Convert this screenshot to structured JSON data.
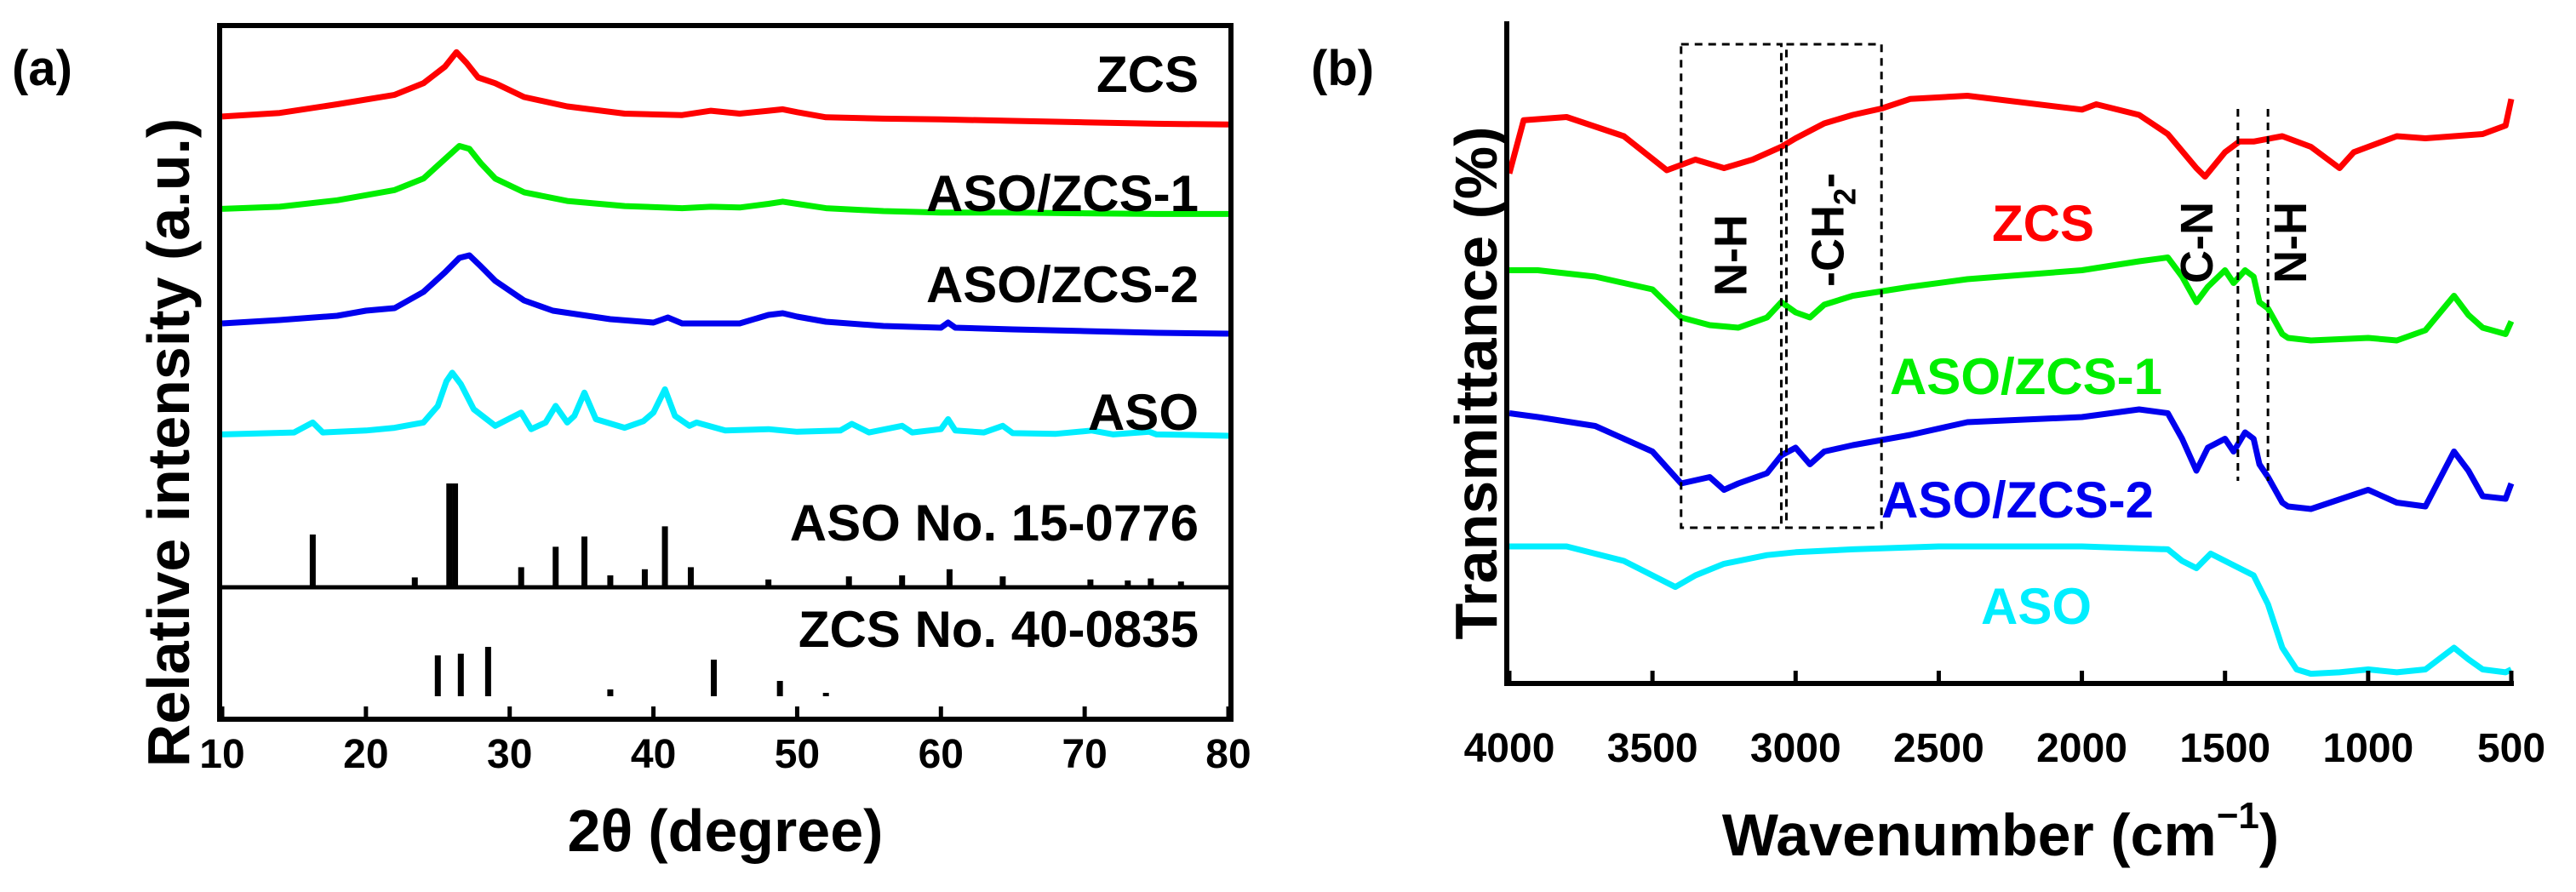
{
  "chart_data": [
    {
      "type": "line",
      "panel_label": "(a)",
      "title": "",
      "xlabel_main": "2θ",
      "xlabel_unit": "(degree)",
      "ylabel": "Relative intensity (a.u.)",
      "xlim": [
        10,
        80
      ],
      "xticks": [
        "10",
        "20",
        "30",
        "40",
        "50",
        "60",
        "70",
        "80"
      ],
      "colors": {
        "ZCS": "#ff0000",
        "ASO/ZCS-1": "#00ee00",
        "ASO/ZCS-2": "#0000ee",
        "ASO": "#00eeff",
        "reference": "#000000"
      },
      "series": [
        {
          "name": "ZCS",
          "x": [
            10,
            14,
            18,
            22,
            24,
            25.5,
            26.3,
            27,
            27.8,
            29,
            31,
            34,
            38,
            42,
            44,
            46,
            48,
            49,
            50,
            52,
            56,
            60,
            65,
            70,
            75,
            80
          ],
          "values": [
            0.06,
            0.11,
            0.23,
            0.36,
            0.52,
            0.75,
            0.95,
            0.8,
            0.6,
            0.52,
            0.33,
            0.2,
            0.1,
            0.08,
            0.14,
            0.1,
            0.14,
            0.16,
            0.12,
            0.05,
            0.03,
            0.02,
            0.0,
            -0.02,
            -0.04,
            -0.05
          ]
        },
        {
          "name": "ASO/ZCS-1",
          "x": [
            10,
            14,
            18,
            22,
            24,
            25.5,
            26.5,
            27.2,
            28,
            29,
            31,
            34,
            38,
            42,
            44,
            46,
            48,
            49,
            50,
            52,
            56,
            60,
            65,
            70,
            75,
            80
          ],
          "values": [
            0.03,
            0.06,
            0.15,
            0.29,
            0.45,
            0.72,
            0.9,
            0.86,
            0.66,
            0.45,
            0.26,
            0.14,
            0.07,
            0.04,
            0.06,
            0.05,
            0.1,
            0.13,
            0.1,
            0.04,
            0.0,
            -0.02,
            -0.02,
            -0.03,
            -0.04,
            -0.04
          ]
        },
        {
          "name": "ASO/ZCS-2",
          "x": [
            10,
            14,
            18,
            20,
            22,
            24,
            25.5,
            26.5,
            27.2,
            28,
            29,
            31,
            33,
            35,
            37,
            40,
            41,
            42,
            46,
            48,
            49,
            50,
            52,
            56,
            60,
            60.5,
            61,
            65,
            70,
            75,
            80
          ],
          "values": [
            0.05,
            0.09,
            0.14,
            0.2,
            0.23,
            0.42,
            0.65,
            0.82,
            0.85,
            0.72,
            0.55,
            0.32,
            0.2,
            0.15,
            0.1,
            0.06,
            0.12,
            0.05,
            0.05,
            0.15,
            0.17,
            0.13,
            0.07,
            0.02,
            0.0,
            0.06,
            0.0,
            -0.02,
            -0.04,
            -0.06,
            -0.07
          ]
        },
        {
          "name": "ASO",
          "x": [
            10,
            15,
            16.3,
            17,
            20,
            22,
            24,
            25,
            25.6,
            26,
            26.6,
            27.5,
            29,
            30.8,
            31.5,
            32.5,
            33.2,
            34,
            34.5,
            35.2,
            36,
            38,
            39.3,
            40,
            40.8,
            41.5,
            42.5,
            43,
            45,
            48,
            50,
            53,
            53.8,
            55,
            57.3,
            58,
            60,
            60.5,
            61,
            63,
            64.3,
            65,
            68,
            70.5,
            72,
            74.5,
            75,
            78,
            80
          ],
          "values": [
            0.02,
            0.05,
            0.2,
            0.05,
            0.08,
            0.12,
            0.2,
            0.45,
            0.82,
            0.95,
            0.78,
            0.4,
            0.15,
            0.35,
            0.1,
            0.2,
            0.45,
            0.2,
            0.3,
            0.65,
            0.25,
            0.12,
            0.22,
            0.35,
            0.7,
            0.3,
            0.15,
            0.2,
            0.08,
            0.1,
            0.06,
            0.08,
            0.18,
            0.05,
            0.15,
            0.05,
            0.1,
            0.25,
            0.08,
            0.05,
            0.15,
            0.04,
            0.03,
            0.08,
            0.02,
            0.06,
            0.02,
            0.01,
            0.0
          ]
        }
      ],
      "reference_patterns": [
        {
          "name": "ASO No. 15-0776",
          "positions": [
            16.3,
            23.4,
            25.8,
            26.2,
            30.8,
            33.2,
            35.2,
            37.0,
            39.4,
            40.8,
            42.6,
            48.0,
            53.6,
            57.3,
            60.6,
            64.3,
            70.4,
            73.0,
            74.6,
            76.7
          ],
          "intensities": [
            0.5,
            0.08,
            1.0,
            1.0,
            0.18,
            0.38,
            0.48,
            0.1,
            0.16,
            0.58,
            0.18,
            0.06,
            0.09,
            0.1,
            0.16,
            0.09,
            0.06,
            0.05,
            0.07,
            0.04
          ]
        },
        {
          "name": "ZCS No. 40-0835",
          "positions": [
            25.0,
            26.6,
            28.5,
            37.0,
            44.2,
            48.8,
            52.0
          ],
          "intensities": [
            0.48,
            0.5,
            0.58,
            0.08,
            0.43,
            0.18,
            0.04
          ]
        }
      ],
      "curve_labels": [
        "ZCS",
        "ASO/ZCS-1",
        "ASO/ZCS-2",
        "ASO"
      ]
    },
    {
      "type": "line",
      "panel_label": "(b)",
      "title": "",
      "xlabel_main": "Wavenumber (cm",
      "xlabel_sup": "−1",
      "xlabel_close": ")",
      "ylabel": "Transmittance (%)",
      "xlim": [
        4000,
        500
      ],
      "xticks": [
        "4000",
        "3500",
        "3000",
        "2500",
        "2000",
        "1500",
        "1000",
        "500"
      ],
      "colors": {
        "ZCS": "#ff0000",
        "ASO/ZCS-1": "#00ee00",
        "ASO/ZCS-2": "#0000ee",
        "ASO": "#00eeff"
      },
      "series": [
        {
          "name": "ZCS",
          "x": [
            4000,
            3950,
            3800,
            3600,
            3450,
            3350,
            3250,
            3150,
            3050,
            3000,
            2900,
            2800,
            2700,
            2600,
            2400,
            2000,
            1950,
            1800,
            1700,
            1650,
            1600,
            1570,
            1500,
            1450,
            1400,
            1300,
            1200,
            1100,
            1050,
            1000,
            900,
            800,
            700,
            600,
            520,
            500
          ],
          "values": [
            0.25,
            0.75,
            0.78,
            0.6,
            0.28,
            0.38,
            0.3,
            0.38,
            0.5,
            0.58,
            0.72,
            0.8,
            0.86,
            0.95,
            0.98,
            0.85,
            0.9,
            0.8,
            0.62,
            0.46,
            0.3,
            0.22,
            0.45,
            0.55,
            0.55,
            0.6,
            0.5,
            0.3,
            0.45,
            0.5,
            0.6,
            0.58,
            0.6,
            0.62,
            0.7,
            0.95
          ]
        },
        {
          "name": "ASO/ZCS-1",
          "x": [
            4000,
            3900,
            3700,
            3500,
            3400,
            3300,
            3200,
            3100,
            3050,
            3000,
            2950,
            2900,
            2800,
            2600,
            2400,
            2000,
            1800,
            1700,
            1650,
            1600,
            1560,
            1500,
            1470,
            1430,
            1400,
            1380,
            1350,
            1300,
            1280,
            1200,
            1000,
            900,
            800,
            700,
            650,
            600,
            520,
            500
          ],
          "values": [
            0.55,
            0.55,
            0.5,
            0.4,
            0.18,
            0.12,
            0.1,
            0.18,
            0.3,
            0.22,
            0.18,
            0.28,
            0.35,
            0.42,
            0.48,
            0.55,
            0.62,
            0.65,
            0.5,
            0.3,
            0.42,
            0.55,
            0.45,
            0.55,
            0.5,
            0.3,
            0.25,
            0.05,
            0.02,
            0.0,
            0.02,
            0.0,
            0.08,
            0.35,
            0.2,
            0.1,
            0.05,
            0.15
          ]
        },
        {
          "name": "ASO/ZCS-2",
          "x": [
            4000,
            3900,
            3700,
            3500,
            3400,
            3300,
            3250,
            3200,
            3100,
            3050,
            3000,
            2950,
            2900,
            2800,
            2600,
            2400,
            2000,
            1800,
            1700,
            1650,
            1600,
            1560,
            1500,
            1470,
            1430,
            1400,
            1380,
            1350,
            1300,
            1280,
            1200,
            1000,
            900,
            800,
            700,
            650,
            600,
            520,
            500
          ],
          "values": [
            0.75,
            0.72,
            0.65,
            0.45,
            0.2,
            0.25,
            0.15,
            0.2,
            0.28,
            0.42,
            0.48,
            0.35,
            0.45,
            0.5,
            0.58,
            0.68,
            0.72,
            0.78,
            0.75,
            0.55,
            0.3,
            0.48,
            0.55,
            0.45,
            0.6,
            0.55,
            0.35,
            0.25,
            0.05,
            0.02,
            0.0,
            0.15,
            0.05,
            0.02,
            0.45,
            0.3,
            0.1,
            0.08,
            0.2
          ]
        },
        {
          "name": "ASO",
          "x": [
            4000,
            3800,
            3600,
            3500,
            3420,
            3350,
            3250,
            3100,
            3000,
            2800,
            2500,
            2000,
            1700,
            1650,
            1600,
            1550,
            1500,
            1400,
            1350,
            1300,
            1250,
            1200,
            1100,
            1000,
            900,
            800,
            700,
            650,
            600,
            520,
            500
          ],
          "values": [
            0.9,
            0.9,
            0.8,
            0.7,
            0.62,
            0.7,
            0.78,
            0.84,
            0.86,
            0.88,
            0.9,
            0.9,
            0.88,
            0.8,
            0.75,
            0.85,
            0.8,
            0.7,
            0.5,
            0.2,
            0.05,
            0.02,
            0.03,
            0.05,
            0.03,
            0.05,
            0.2,
            0.12,
            0.05,
            0.03,
            0.05
          ]
        }
      ],
      "curve_labels": [
        "ZCS",
        "ASO/ZCS-1",
        "ASO/ZCS-2",
        "ASO"
      ],
      "band_annotations": [
        {
          "label": "N-H",
          "x_from": 3400,
          "x_to": 3050
        },
        {
          "label": "-CH",
          "sub": "2",
          "suffix": "-",
          "x_from": 3050,
          "x_to": 2700
        },
        {
          "label": "C-N",
          "x": 1455
        },
        {
          "label": "N-H",
          "x": 1350
        }
      ]
    }
  ]
}
